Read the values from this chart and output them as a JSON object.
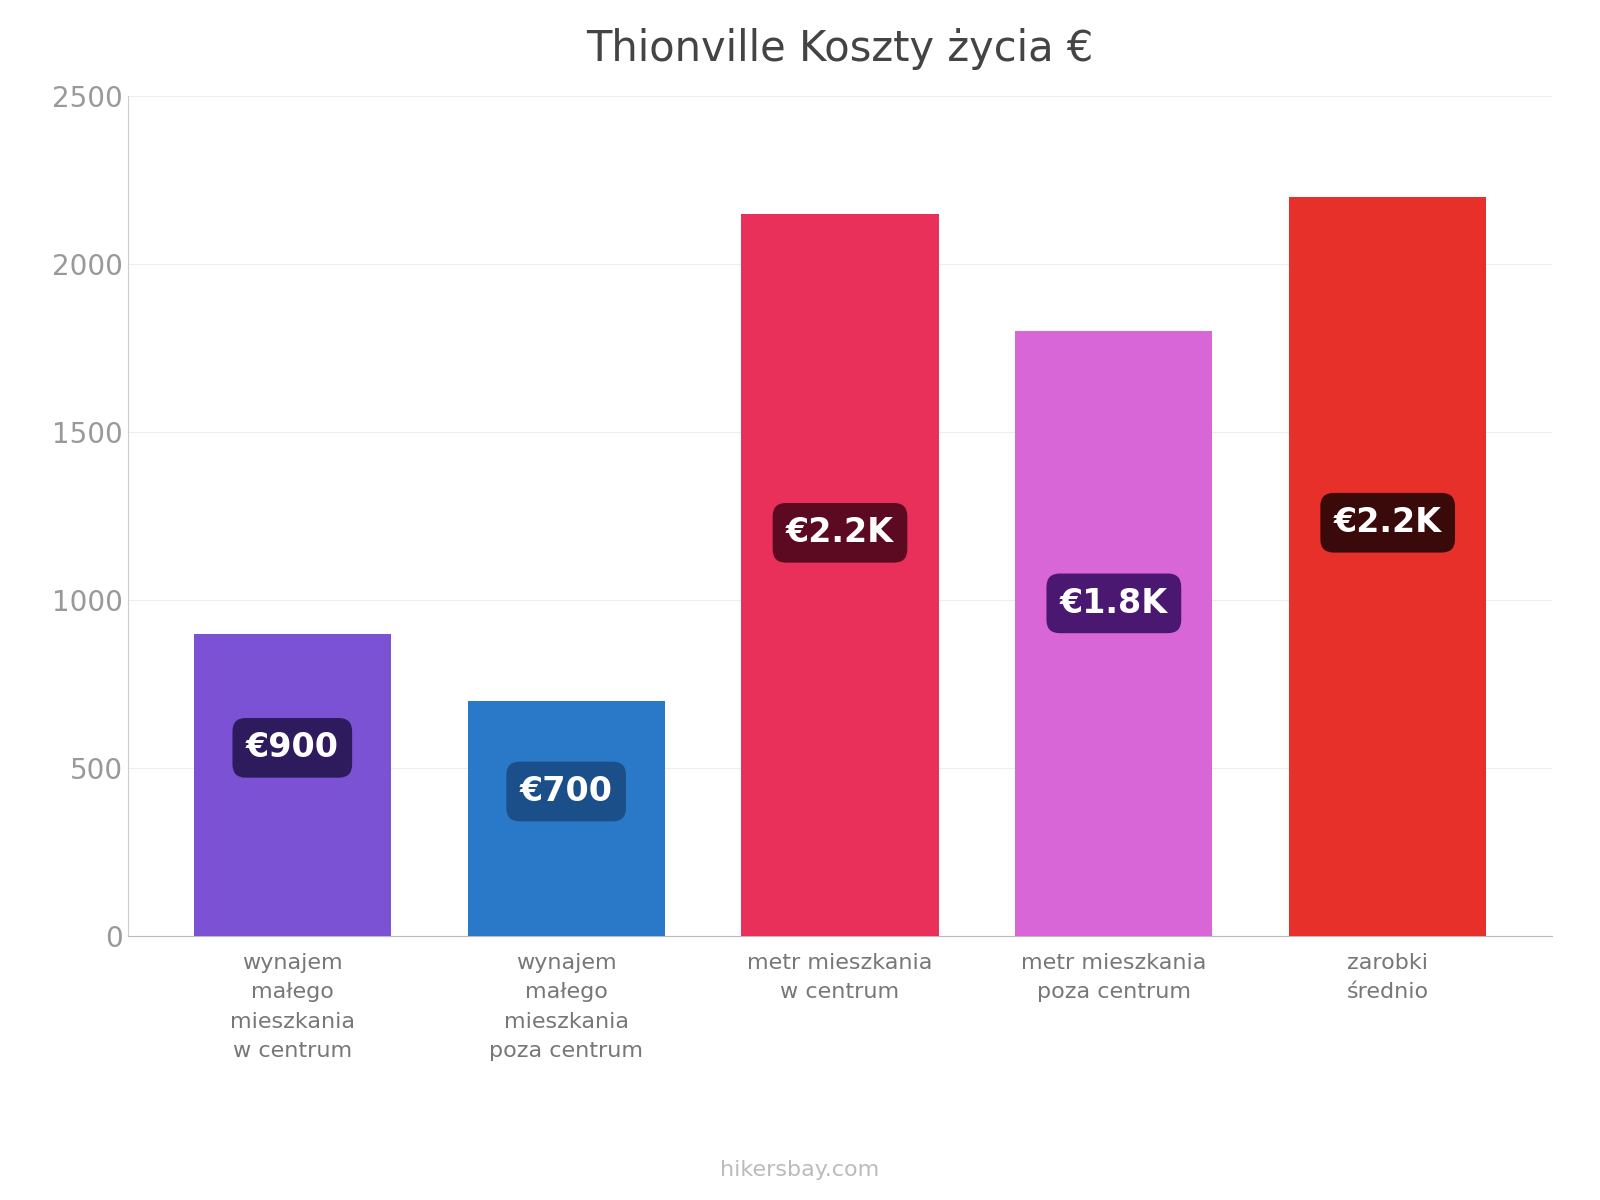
{
  "title": "Thionville Koszty życia €",
  "categories": [
    "wynajem\nmałego\nmieszkania\nw centrum",
    "wynajem\nmałego\nmieszkania\npoza centrum",
    "metr mieszkania\nw centrum",
    "metr mieszkania\npoza centrum",
    "zarobki\nśrednio"
  ],
  "values": [
    900,
    700,
    2150,
    1800,
    2200
  ],
  "bar_colors": [
    "#7B52D3",
    "#2979C8",
    "#E8305A",
    "#D966D6",
    "#E8302A"
  ],
  "label_texts": [
    "€900",
    "€700",
    "€2.2K",
    "€1.8K",
    "€2.2K"
  ],
  "label_bg_colors": [
    "#2E1B5E",
    "#1A4F8A",
    "#5C0A22",
    "#4A1870",
    "#3A0A0A"
  ],
  "label_y_positions": [
    560,
    430,
    1200,
    990,
    1230
  ],
  "ylim": [
    0,
    2500
  ],
  "yticks": [
    0,
    500,
    1000,
    1500,
    2000,
    2500
  ],
  "watermark": "hikersbay.com",
  "title_fontsize": 30,
  "label_fontsize": 24,
  "tick_fontsize": 20,
  "category_fontsize": 16,
  "bar_width": 0.72
}
